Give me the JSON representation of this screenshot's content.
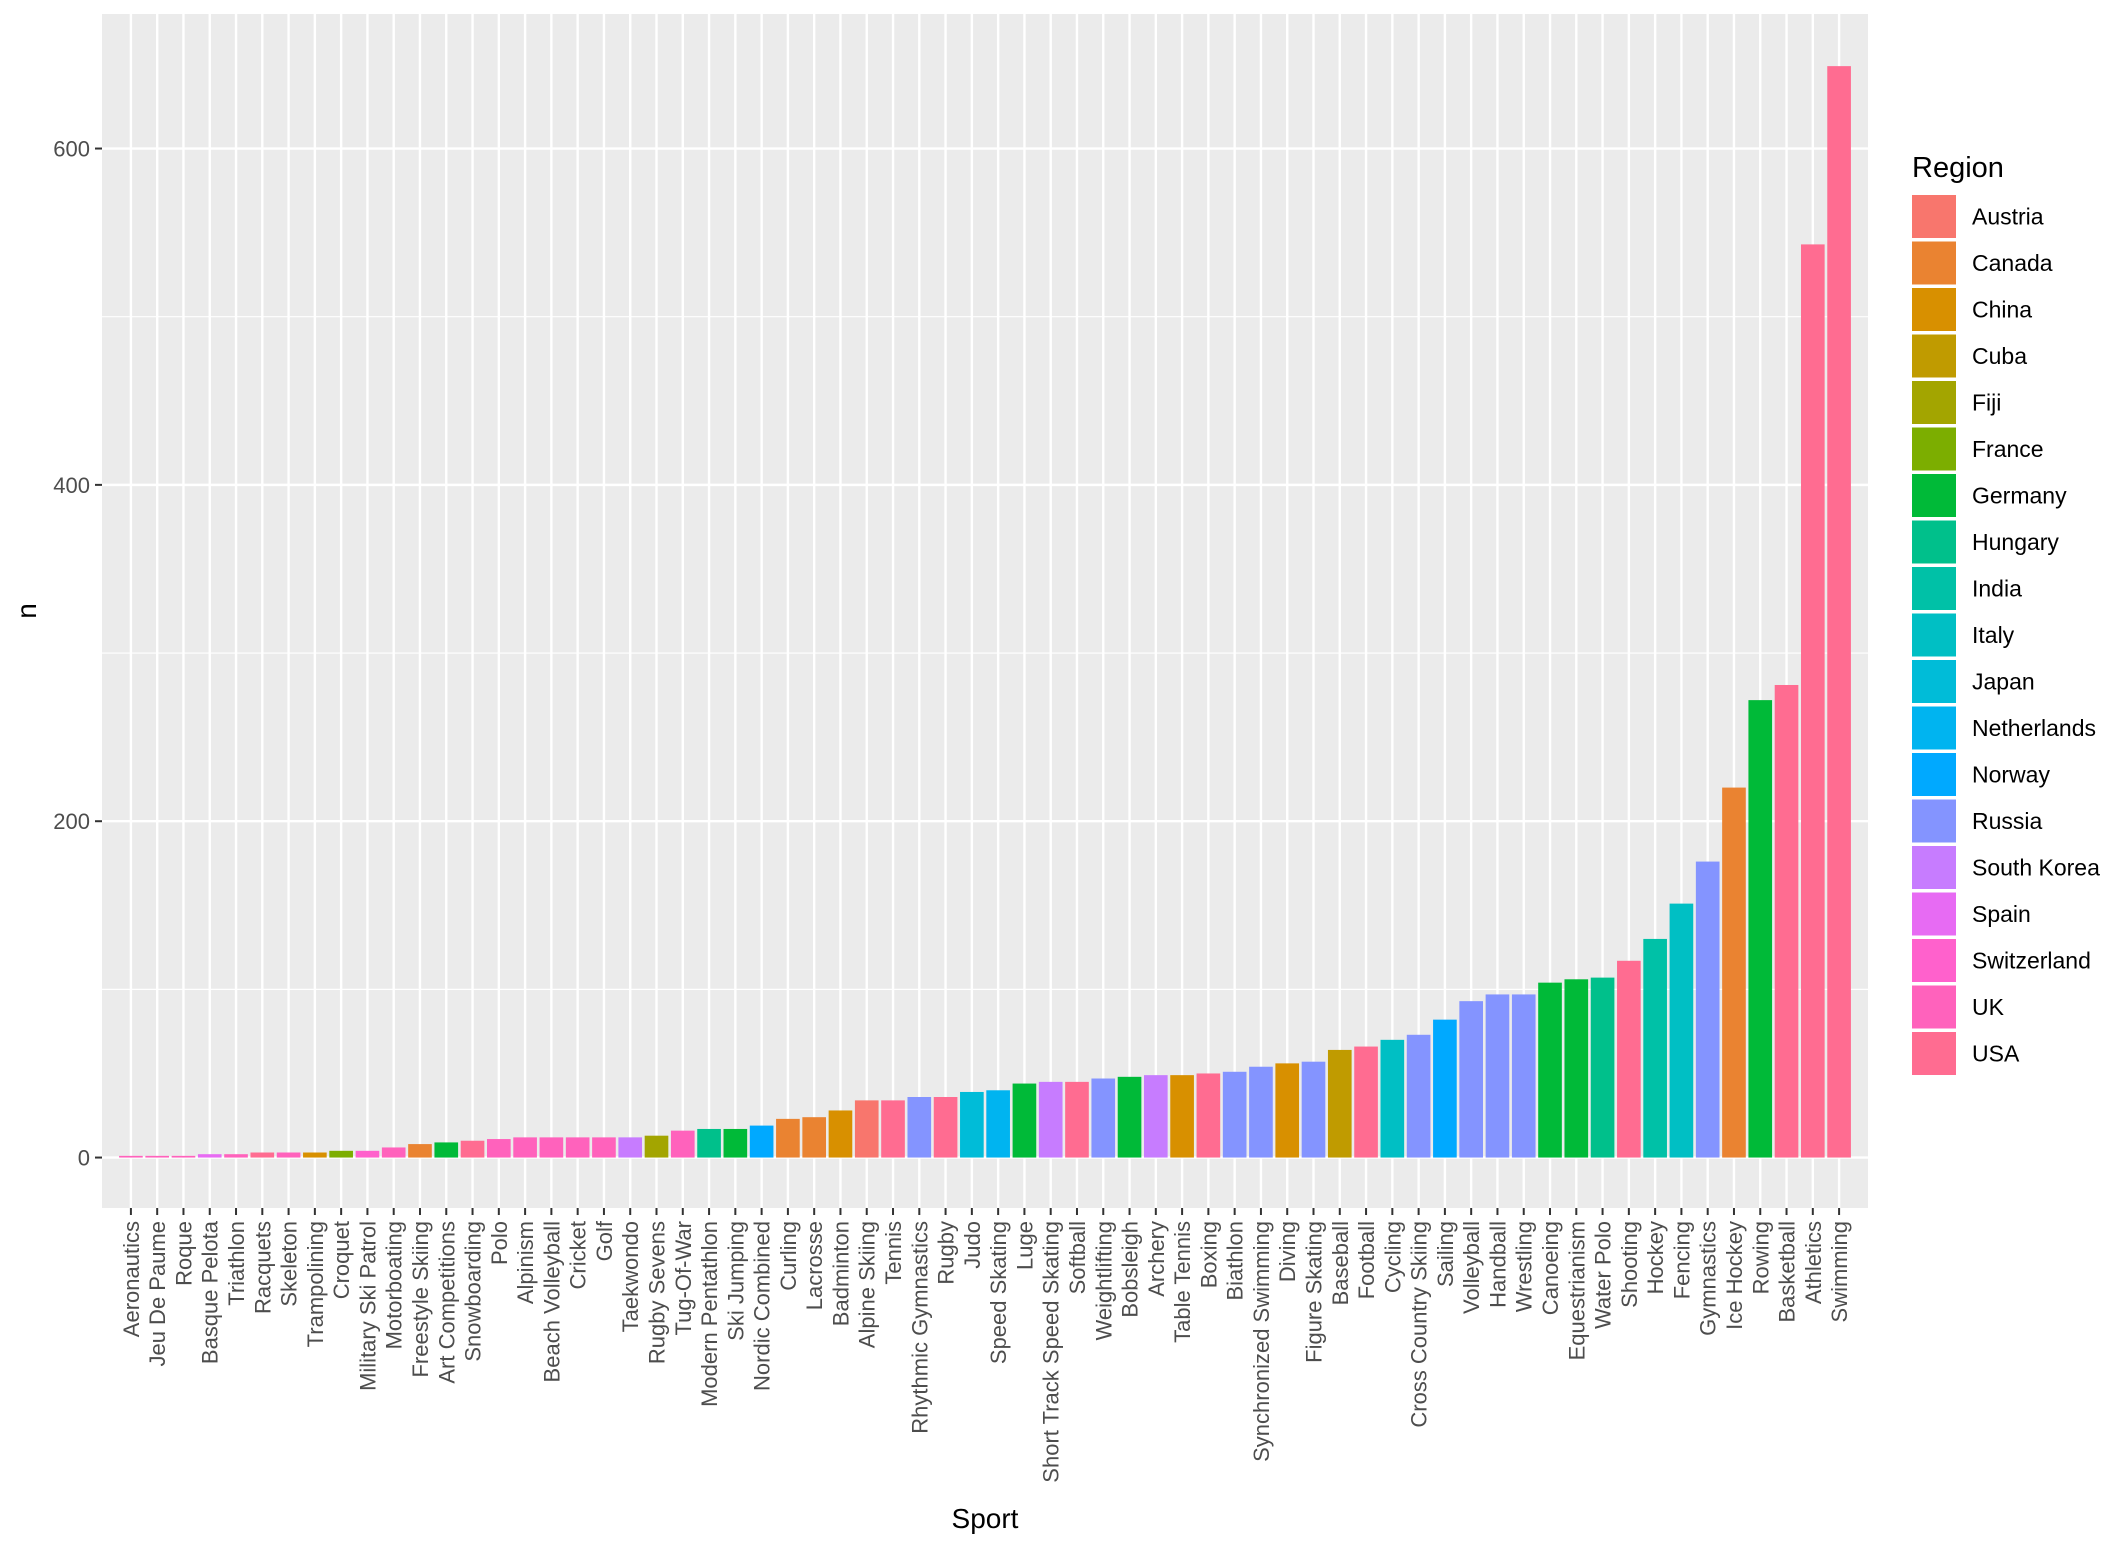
{
  "chart_data": {
    "type": "bar",
    "xlabel": "Sport",
    "ylabel": "n",
    "ylim": [
      -30,
      680
    ],
    "y_ticks": [
      0,
      200,
      400,
      600
    ],
    "grid": true,
    "legend": {
      "title": "Region",
      "placement": "right",
      "entries": [
        {
          "name": "Austria",
          "color": "#F8766D"
        },
        {
          "name": "Canada",
          "color": "#EA8331"
        },
        {
          "name": "China",
          "color": "#D89000"
        },
        {
          "name": "Cuba",
          "color": "#C09B00"
        },
        {
          "name": "Fiji",
          "color": "#A3A500"
        },
        {
          "name": "France",
          "color": "#7CAE00"
        },
        {
          "name": "Germany",
          "color": "#00BA38"
        },
        {
          "name": "Hungary",
          "color": "#00C08B"
        },
        {
          "name": "India",
          "color": "#00C1A7"
        },
        {
          "name": "Italy",
          "color": "#00BFC4"
        },
        {
          "name": "Japan",
          "color": "#00BCD8"
        },
        {
          "name": "Netherlands",
          "color": "#00B4F0"
        },
        {
          "name": "Norway",
          "color": "#00A9FF"
        },
        {
          "name": "Russia",
          "color": "#8494FF"
        },
        {
          "name": "South Korea",
          "color": "#C77CFF"
        },
        {
          "name": "Spain",
          "color": "#E76BF3"
        },
        {
          "name": "Switzerland",
          "color": "#FF61CC"
        },
        {
          "name": "UK",
          "color": "#FF62BC"
        },
        {
          "name": "USA",
          "color": "#FF6C91"
        }
      ]
    },
    "categories": [
      "Aeronautics",
      "Jeu De Paume",
      "Roque",
      "Basque Pelota",
      "Triathlon",
      "Racquets",
      "Skeleton",
      "Trampolining",
      "Croquet",
      "Military Ski Patrol",
      "Motorboating",
      "Freestyle Skiing",
      "Art Competitions",
      "Snowboarding",
      "Polo",
      "Alpinism",
      "Beach Volleyball",
      "Cricket",
      "Golf",
      "Taekwondo",
      "Rugby Sevens",
      "Tug-Of-War",
      "Modern Pentathlon",
      "Ski Jumping",
      "Nordic Combined",
      "Curling",
      "Lacrosse",
      "Badminton",
      "Alpine Skiing",
      "Tennis",
      "Rhythmic Gymnastics",
      "Rugby",
      "Judo",
      "Speed Skating",
      "Luge",
      "Short Track Speed Skating",
      "Softball",
      "Weightlifting",
      "Bobsleigh",
      "Archery",
      "Table Tennis",
      "Boxing",
      "Biathlon",
      "Synchronized Swimming",
      "Diving",
      "Figure Skating",
      "Baseball",
      "Football",
      "Cycling",
      "Cross Country Skiing",
      "Sailing",
      "Volleyball",
      "Handball",
      "Wrestling",
      "Canoeing",
      "Equestrianism",
      "Water Polo",
      "Shooting",
      "Hockey",
      "Fencing",
      "Gymnastics",
      "Ice Hockey",
      "Rowing",
      "Basketball",
      "Athletics",
      "Swimming"
    ],
    "values": [
      1,
      1,
      1,
      2,
      2,
      3,
      3,
      3,
      4,
      4,
      6,
      8,
      9,
      10,
      11,
      12,
      12,
      12,
      12,
      12,
      13,
      16,
      17,
      17,
      19,
      23,
      24,
      28,
      34,
      34,
      36,
      36,
      39,
      40,
      44,
      45,
      45,
      47,
      48,
      49,
      49,
      50,
      51,
      54,
      56,
      57,
      64,
      66,
      70,
      73,
      82,
      93,
      97,
      97,
      104,
      106,
      107,
      117,
      130,
      151,
      176,
      220,
      272,
      281,
      543,
      649
    ],
    "regions": [
      "UK",
      "UK",
      "UK",
      "Spain",
      "UK",
      "USA",
      "UK",
      "China",
      "France",
      "Switzerland",
      "UK",
      "Canada",
      "Germany",
      "USA",
      "UK",
      "UK",
      "UK",
      "UK",
      "UK",
      "South Korea",
      "Fiji",
      "UK",
      "Hungary",
      "Germany",
      "Norway",
      "Canada",
      "Canada",
      "China",
      "Austria",
      "USA",
      "Russia",
      "USA",
      "Japan",
      "Netherlands",
      "Germany",
      "South Korea",
      "USA",
      "Russia",
      "Germany",
      "South Korea",
      "China",
      "USA",
      "Russia",
      "Russia",
      "China",
      "Russia",
      "Cuba",
      "USA",
      "Italy",
      "Russia",
      "Norway",
      "Russia",
      "Russia",
      "Russia",
      "Germany",
      "Germany",
      "Hungary",
      "USA",
      "India",
      "Italy",
      "Russia",
      "Canada",
      "Germany",
      "USA",
      "USA",
      "USA"
    ]
  }
}
